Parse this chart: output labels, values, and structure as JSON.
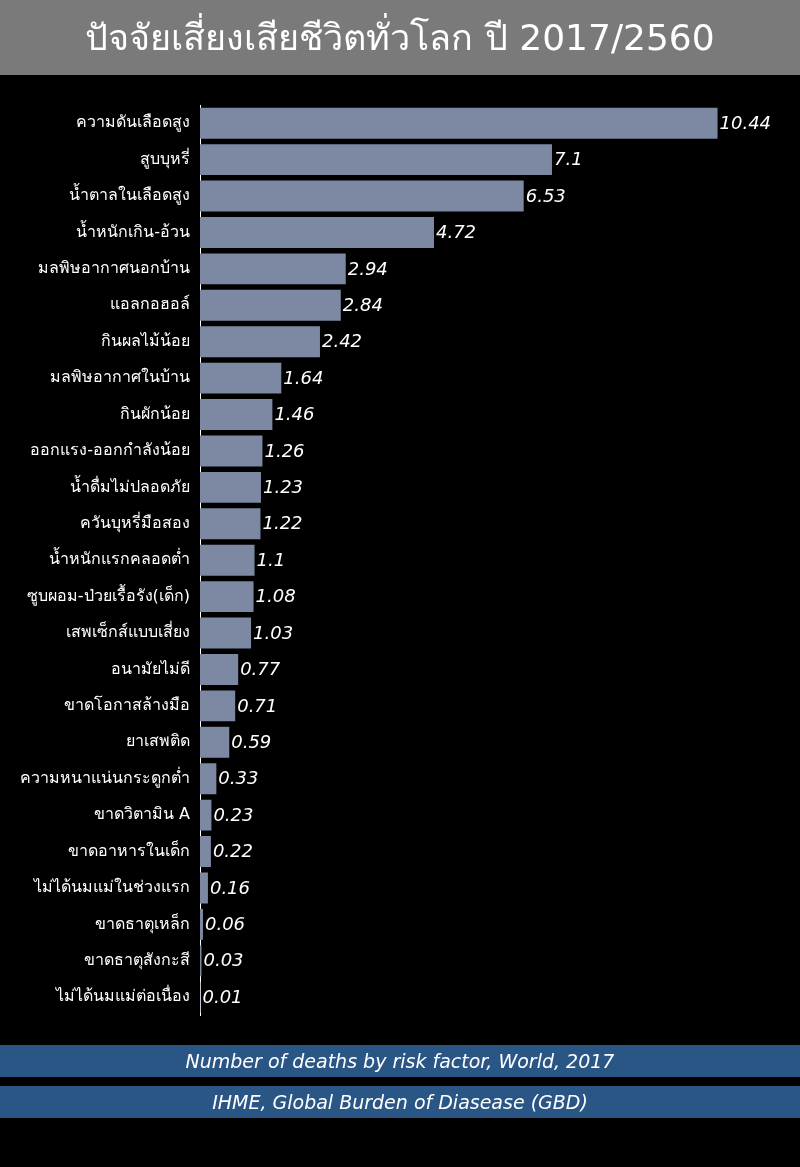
{
  "chart_data": {
    "type": "bar",
    "orientation": "horizontal",
    "title": "ปัจจัยเสี่ยงเสียชีวิตทั่วโลก ปี 2017/2560",
    "categories": [
      "ความดันเลือดสูง",
      "สูบบุหรี่",
      "น้ำตาลในเลือดสูง",
      "น้ำหนักเกิน-อ้วน",
      "มลพิษอากาศนอกบ้าน",
      "แอลกอฮอล์",
      "กินผลไม้น้อย",
      "มลพิษอากาศในบ้าน",
      "กินผักน้อย",
      "ออกแรง-ออกกำลังน้อย",
      "น้ำดื่มไม่ปลอดภัย",
      "ควันบุหรี่มือสอง",
      "น้ำหนักแรกคลอดต่ำ",
      "ซูบผอม-ป่วยเรื้อรัง(เด็ก)",
      "เสพเซ็กส์แบบเสี่ยง",
      "อนามัยไม่ดี",
      "ขาดโอกาสล้างมือ",
      "ยาเสพติด",
      "ความหนาแน่นกระดูกต่ำ",
      "ขาดวิตามิน A",
      "ขาดอาหารในเด็ก",
      "ไม่ได้นมแม่ในช่วงแรก",
      "ขาดธาตุเหล็ก",
      "ขาดธาตุสังกะสี",
      "ไม่ได้นมแม่ต่อเนื่อง"
    ],
    "values": [
      10.44,
      7.1,
      6.53,
      4.72,
      2.94,
      2.84,
      2.42,
      1.64,
      1.46,
      1.26,
      1.23,
      1.22,
      1.1,
      1.08,
      1.03,
      0.77,
      0.71,
      0.59,
      0.33,
      0.23,
      0.22,
      0.16,
      0.06,
      0.03,
      0.01
    ],
    "color": "#7d89a3",
    "data_labels": true,
    "annotations": [
      "Number of deaths by risk factor, World, 2017",
      "IHME, Global Burden of Diasease (GBD)"
    ]
  }
}
